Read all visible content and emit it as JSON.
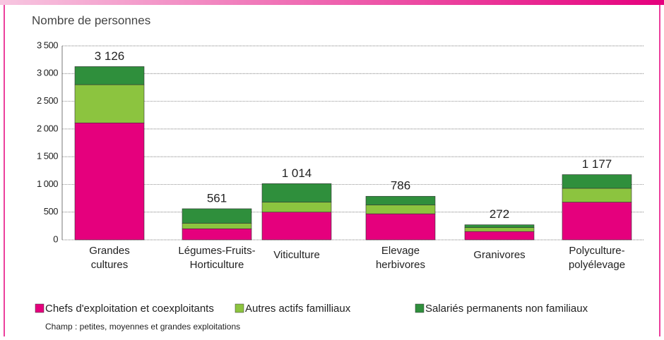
{
  "chart_data": {
    "type": "stacked-bar",
    "y_label": "Nombre de personnes",
    "note": "Champ : petites, moyennes et grandes exploitations",
    "categories": [
      [
        "Grandes",
        "cultures"
      ],
      [
        "Légumes-Fruits-",
        "Horticulture"
      ],
      [
        "Viticulture"
      ],
      [
        "Elevage",
        "herbivores"
      ],
      [
        "Granivores"
      ],
      [
        "Polyculture-",
        "polyélevage"
      ]
    ],
    "series": [
      {
        "name": "Chefs d'exploitation et coexploitants",
        "color": "#e5007d",
        "values": [
          2110,
          200,
          500,
          470,
          150,
          680
        ]
      },
      {
        "name": "Autres actifs familliaux",
        "color": "#8cc43f",
        "values": [
          690,
          100,
          180,
          160,
          70,
          250
        ]
      },
      {
        "name": "Salariés permanents non familiaux",
        "color": "#2f8f3c",
        "values": [
          326,
          261,
          334,
          156,
          52,
          247
        ]
      }
    ],
    "totals": [
      3126,
      561,
      1014,
      786,
      272,
      1177
    ],
    "total_labels": [
      "3 126",
      "561",
      "1 014",
      "786",
      "272",
      "1 177"
    ],
    "ylim": [
      0,
      3500
    ],
    "yticks": [
      0,
      500,
      {
        "value": 1000,
        "label": "1 000"
      },
      {
        "value": 1500,
        "label": "1 500"
      },
      {
        "value": 2000,
        "label": "2 000"
      },
      {
        "value": 2500,
        "label": "2 500"
      },
      {
        "value": 3000,
        "label": "3 000"
      },
      {
        "value": 3500,
        "label": "3 500"
      }
    ],
    "grid": true
  }
}
